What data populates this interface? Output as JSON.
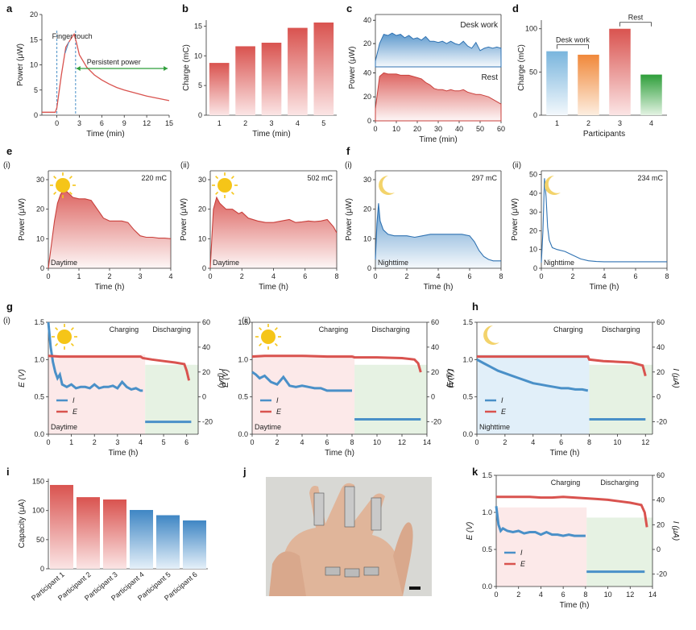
{
  "panel_labels": {
    "a": "a",
    "b": "b",
    "c": "c",
    "d": "d",
    "e": "e",
    "f": "f",
    "g": "g",
    "h": "h",
    "i": "i",
    "j": "j",
    "k": "k"
  },
  "sub_labels": {
    "e1": "(i)",
    "e2": "(ii)",
    "f1": "(i)",
    "f2": "(ii)",
    "g1": "(i)",
    "g2": "(ii)"
  },
  "colors": {
    "red": "#d9534f",
    "red_light": "#f7d6d6",
    "blue": "#4a90c8",
    "blue_light": "#cfe3f2",
    "green": "#2e9e3a",
    "orange": "#f0883a",
    "green_shade": "#e3f1e0",
    "pink_shade": "#fbe3e3",
    "sun": "#f5c518",
    "moon": "#f3d36b"
  },
  "chart_data": [
    {
      "id": "a",
      "type": "line",
      "xlabel": "Time (min)",
      "ylabel": "Power (μW)",
      "xlim": [
        -2,
        15
      ],
      "ylim": [
        0,
        20
      ],
      "xticks": [
        "0",
        "3",
        "6",
        "9",
        "12",
        "15"
      ],
      "yticks": [
        "0",
        "5",
        "10",
        "15",
        "20"
      ],
      "annotations": [
        "Finger touch",
        "Persistent power"
      ],
      "x": [
        -2,
        -0.2,
        0,
        0.6,
        1.2,
        1.8,
        2.3,
        2.6,
        3,
        4,
        5,
        6,
        7,
        8,
        9,
        10,
        11,
        12,
        13,
        14,
        15
      ],
      "y": [
        0.6,
        0.6,
        1.5,
        8,
        13.5,
        15,
        16.1,
        14.5,
        12,
        9.5,
        8,
        7,
        6.2,
        5.5,
        5,
        4.6,
        4.2,
        3.8,
        3.5,
        3.2,
        2.9
      ]
    },
    {
      "id": "b",
      "type": "bar",
      "xlabel": "Time (min)",
      "ylabel": "Charge (mC)",
      "ylim": [
        0,
        16
      ],
      "categories": [
        "1",
        "2",
        "3",
        "4",
        "5"
      ],
      "values": [
        8.8,
        11.6,
        12.2,
        14.7,
        15.6
      ],
      "yticks": [
        "0",
        "5",
        "10",
        "15"
      ]
    },
    {
      "id": "c",
      "type": "area",
      "xlabel": "Time (min)",
      "ylabel": "Power (μW)",
      "xlim": [
        0,
        60
      ],
      "xticks": [
        "0",
        "10",
        "20",
        "30",
        "40",
        "50",
        "60"
      ],
      "yticks_top": [
        "20",
        "40"
      ],
      "yticks_bottom": [
        "0",
        "20",
        "40"
      ],
      "series": [
        {
          "name": "Desk work",
          "x": [
            0,
            2,
            4,
            6,
            8,
            10,
            12,
            14,
            16,
            18,
            20,
            22,
            24,
            26,
            28,
            30,
            32,
            34,
            36,
            38,
            40,
            42,
            44,
            46,
            48,
            50,
            52,
            54,
            56,
            58,
            60
          ],
          "y": [
            5,
            20,
            28,
            27,
            29,
            27,
            28,
            25,
            27,
            24,
            25,
            23,
            26,
            22,
            22,
            21,
            22,
            20,
            22,
            20,
            19,
            22,
            18,
            16,
            21,
            14,
            16,
            17,
            16,
            17,
            16
          ]
        },
        {
          "name": "Rest",
          "x": [
            0,
            2,
            4,
            6,
            8,
            10,
            12,
            14,
            16,
            18,
            20,
            22,
            24,
            26,
            28,
            30,
            32,
            34,
            36,
            38,
            40,
            42,
            44,
            46,
            48,
            50,
            52,
            54,
            56,
            58,
            60
          ],
          "y": [
            10,
            37,
            40,
            39,
            39,
            39,
            38,
            38,
            38,
            37,
            36,
            35,
            32,
            30,
            27,
            26,
            26,
            25,
            26,
            25,
            25,
            26,
            24,
            23,
            22,
            22,
            21,
            20,
            18,
            16,
            14
          ]
        }
      ]
    },
    {
      "id": "d",
      "type": "bar",
      "xlabel": "Participants",
      "ylabel": "Charge (mC)",
      "ylim": [
        0,
        110
      ],
      "categories": [
        "1",
        "2",
        "3",
        "4"
      ],
      "values": [
        74,
        70,
        100,
        47
      ],
      "yticks": [
        "0",
        "50",
        "100"
      ],
      "annotations": [
        "Desk work",
        "Rest"
      ]
    },
    {
      "id": "e1",
      "type": "area",
      "xlabel": "Time (h)",
      "ylabel": "Power (μW)",
      "xlim": [
        0,
        4
      ],
      "ylim": [
        0,
        33
      ],
      "xticks": [
        "0",
        "1",
        "2",
        "3",
        "4"
      ],
      "yticks": [
        "0",
        "10",
        "20",
        "30"
      ],
      "annotations": [
        "220 mC",
        "Daytime"
      ],
      "x": [
        0,
        0.1,
        0.2,
        0.3,
        0.4,
        0.5,
        0.6,
        0.7,
        0.8,
        1.0,
        1.2,
        1.4,
        1.6,
        1.8,
        2.0,
        2.2,
        2.4,
        2.6,
        2.8,
        3.0,
        3.2,
        3.4,
        3.6,
        3.8,
        4.0
      ],
      "y": [
        0,
        8,
        16,
        22,
        25,
        26.5,
        26,
        25,
        24,
        23.5,
        23.5,
        23,
        20,
        17,
        16,
        16,
        16,
        15.5,
        13,
        11,
        10.5,
        10.5,
        10.2,
        10.2,
        10
      ]
    },
    {
      "id": "e2",
      "type": "area",
      "xlabel": "Time (h)",
      "ylabel": "Power (μW)",
      "xlim": [
        0,
        8
      ],
      "ylim": [
        0,
        33
      ],
      "xticks": [
        "0",
        "2",
        "4",
        "6",
        "8"
      ],
      "yticks": [
        "0",
        "10",
        "20",
        "30"
      ],
      "annotations": [
        "502 mC",
        "Daytime"
      ],
      "x": [
        0,
        0.2,
        0.4,
        0.6,
        0.8,
        1.0,
        1.4,
        1.8,
        2.0,
        2.4,
        3.0,
        3.5,
        4.0,
        4.5,
        5.0,
        5.4,
        5.8,
        6.2,
        6.6,
        7.0,
        7.4,
        7.8,
        8.0
      ],
      "y": [
        0,
        20,
        24,
        22,
        21,
        20,
        20,
        18.5,
        19,
        17,
        16,
        15.5,
        15.5,
        16,
        16.5,
        15.5,
        15.7,
        16,
        15.8,
        16,
        16.5,
        14,
        12
      ]
    },
    {
      "id": "f1",
      "type": "area",
      "xlabel": "Time (h)",
      "ylabel": "Power (μW)",
      "xlim": [
        0,
        8
      ],
      "ylim": [
        0,
        33
      ],
      "xticks": [
        "0",
        "2",
        "4",
        "6",
        "8"
      ],
      "yticks": [
        "0",
        "10",
        "20",
        "30"
      ],
      "annotations": [
        "297 mC",
        "Nighttime"
      ],
      "x": [
        0,
        0.1,
        0.2,
        0.3,
        0.5,
        0.8,
        1.2,
        1.6,
        2.0,
        2.5,
        3.0,
        3.5,
        4.0,
        4.5,
        5.0,
        5.5,
        6.0,
        6.3,
        6.6,
        6.9,
        7.2,
        7.5,
        8.0
      ],
      "y": [
        3,
        15,
        22,
        16,
        13,
        11.5,
        11,
        11,
        11,
        10.5,
        11,
        11.5,
        11.5,
        11.5,
        11.5,
        11.5,
        11,
        9,
        6,
        4,
        3,
        2.5,
        2.5
      ]
    },
    {
      "id": "f2",
      "type": "line",
      "xlabel": "Time (h)",
      "ylabel": "Power (μW)",
      "xlim": [
        0,
        8
      ],
      "ylim": [
        0,
        52
      ],
      "xticks": [
        "0",
        "2",
        "4",
        "6",
        "8"
      ],
      "yticks": [
        "0",
        "10",
        "20",
        "30",
        "40",
        "50"
      ],
      "annotations": [
        "234 mC",
        "Nighttime"
      ],
      "x": [
        0,
        0.1,
        0.2,
        0.3,
        0.4,
        0.5,
        0.7,
        1.0,
        1.5,
        2.0,
        2.5,
        3.0,
        3.5,
        4.0,
        5.0,
        6.0,
        7.0,
        8.0
      ],
      "y": [
        3,
        20,
        48,
        38,
        22,
        15,
        11,
        10,
        9,
        7,
        5,
        4,
        3.6,
        3.5,
        3.5,
        3.5,
        3.5,
        3.5
      ]
    },
    {
      "id": "g1",
      "type": "line",
      "xlabel": "Time (h)",
      "ylabel": "E (V)",
      "ylabel_right": "I (μA)",
      "xlim": [
        0,
        6.5
      ],
      "xticks": [
        "0",
        "1",
        "2",
        "3",
        "4",
        "5",
        "6"
      ],
      "yticks": [
        "0.0",
        "0.5",
        "1.0",
        "1.5"
      ],
      "yticks_right": [
        "-20",
        "0",
        "20",
        "40",
        "60"
      ],
      "annotations": [
        "Charging",
        "Discharging",
        "Daytime"
      ],
      "legend": [
        "I",
        "E"
      ],
      "series": [
        {
          "name": "I",
          "x": [
            0,
            0.1,
            0.2,
            0.3,
            0.4,
            0.5,
            0.6,
            0.8,
            1.0,
            1.2,
            1.4,
            1.6,
            1.8,
            2.0,
            2.2,
            2.4,
            2.6,
            2.8,
            3.0,
            3.2,
            3.4,
            3.6,
            3.8,
            4.0,
            4.1,
            4.2,
            5,
            6,
            6.2
          ],
          "y": [
            60,
            40,
            28,
            20,
            15,
            18,
            10,
            8,
            10,
            7,
            8,
            8,
            7,
            10,
            7,
            8,
            8,
            9,
            7,
            12,
            8,
            6,
            7,
            5,
            5,
            -20,
            -20,
            -20,
            -20
          ]
        },
        {
          "name": "E",
          "x": [
            0,
            0.5,
            1,
            2,
            3,
            4,
            4.1,
            4.5,
            5,
            5.5,
            5.9,
            6.0,
            6.1
          ],
          "y": [
            1.05,
            1.04,
            1.04,
            1.04,
            1.04,
            1.04,
            1.02,
            1.0,
            0.98,
            0.96,
            0.94,
            0.85,
            0.72
          ]
        }
      ]
    },
    {
      "id": "g2",
      "type": "line",
      "xlabel": "Time (h)",
      "ylabel": "E (V)",
      "ylabel_right": "I (μA)",
      "xlim": [
        0,
        14
      ],
      "xticks": [
        "0",
        "2",
        "4",
        "6",
        "8",
        "10",
        "12",
        "14"
      ],
      "yticks": [
        "0.0",
        "0.5",
        "1.0",
        "1.5"
      ],
      "yticks_right": [
        "-20",
        "0",
        "20",
        "40",
        "60"
      ],
      "annotations": [
        "Charging",
        "Discharging",
        "Daytime"
      ],
      "legend": [
        "I",
        "E"
      ],
      "series": [
        {
          "name": "I",
          "x": [
            0,
            0.3,
            0.6,
            1.0,
            1.5,
            2.0,
            2.5,
            3.0,
            3.5,
            4.0,
            4.5,
            5.0,
            5.5,
            6.0,
            6.5,
            7.0,
            7.5,
            8.0,
            8.2,
            10,
            12,
            13.5
          ],
          "y": [
            20,
            18,
            15,
            17,
            12,
            10,
            16,
            9,
            8,
            9,
            8,
            7,
            7,
            5,
            5,
            5,
            5,
            5,
            -18,
            -18,
            -18,
            -18
          ]
        },
        {
          "name": "E",
          "x": [
            0,
            1,
            2,
            4,
            6,
            8,
            8.2,
            10,
            12,
            13,
            13.3,
            13.5
          ],
          "y": [
            1.04,
            1.05,
            1.05,
            1.05,
            1.04,
            1.04,
            1.03,
            1.03,
            1.02,
            1.0,
            0.95,
            0.83
          ]
        }
      ]
    },
    {
      "id": "h",
      "type": "line",
      "xlabel": "Time (h)",
      "ylabel": "E (V)",
      "ylabel_right": "I (μA)",
      "xlim": [
        0,
        12.5
      ],
      "xticks": [
        "0",
        "2",
        "4",
        "6",
        "8",
        "10",
        "12"
      ],
      "yticks": [
        "0.0",
        "0.5",
        "1.0",
        "1.5"
      ],
      "yticks_right": [
        "-20",
        "0",
        "20",
        "40",
        "60"
      ],
      "annotations": [
        "Charging",
        "Discharging",
        "Nighttime"
      ],
      "legend": [
        "I",
        "E"
      ],
      "series": [
        {
          "name": "I",
          "x": [
            0,
            0.5,
            1,
            1.5,
            2,
            2.5,
            3,
            3.5,
            4,
            4.5,
            5,
            5.5,
            6,
            6.5,
            7,
            7.5,
            7.9,
            8.0,
            9,
            10,
            11,
            12
          ],
          "y": [
            30,
            27,
            24,
            21,
            19,
            17,
            15,
            13,
            11,
            10,
            9,
            8,
            7,
            7,
            6,
            6,
            5,
            -18,
            -18,
            -18,
            -18,
            -18
          ]
        },
        {
          "name": "E",
          "x": [
            0,
            2,
            4,
            6,
            7.9,
            8.0,
            9,
            10,
            11,
            11.8,
            12.0
          ],
          "y": [
            1.04,
            1.04,
            1.04,
            1.04,
            1.04,
            1.0,
            0.98,
            0.97,
            0.96,
            0.92,
            0.78
          ]
        }
      ]
    },
    {
      "id": "i",
      "type": "bar",
      "ylabel": "Capacity (μA)",
      "ylim": [
        0,
        155
      ],
      "categories": [
        "Participant 1",
        "Participant 2",
        "Participant 3",
        "Participant 4",
        "Participant 5",
        "Participant 6"
      ],
      "values": [
        144,
        123,
        119,
        101,
        92,
        83
      ],
      "yticks": [
        "0",
        "50",
        "100",
        "150"
      ]
    },
    {
      "id": "k",
      "type": "line",
      "xlabel": "Time (h)",
      "ylabel": "E (V)",
      "ylabel_right": "I (μA)",
      "xlim": [
        0,
        14
      ],
      "xticks": [
        "0",
        "2",
        "4",
        "6",
        "8",
        "10",
        "12",
        "14"
      ],
      "yticks": [
        "0.0",
        "0.5",
        "1.0",
        "1.5"
      ],
      "yticks_right": [
        "-20",
        "0",
        "20",
        "40",
        "60"
      ],
      "annotations": [
        "Charging",
        "Discharging"
      ],
      "legend": [
        "I",
        "E"
      ],
      "series": [
        {
          "name": "I",
          "x": [
            0,
            0.2,
            0.4,
            0.6,
            1,
            1.5,
            2,
            2.5,
            3,
            3.5,
            4,
            4.5,
            5,
            5.5,
            6,
            6.5,
            7,
            7.5,
            8.0,
            8.1,
            10,
            12,
            13.3
          ],
          "y": [
            35,
            20,
            15,
            17,
            15,
            14,
            15,
            13,
            14,
            14,
            12,
            14,
            12,
            12,
            11,
            12,
            11,
            11,
            11,
            -18,
            -18,
            -18,
            -18
          ]
        },
        {
          "name": "E",
          "x": [
            0,
            1,
            2,
            3,
            4,
            5,
            6,
            7,
            8,
            9,
            10,
            11,
            12,
            13,
            13.3,
            13.5
          ],
          "y": [
            1.21,
            1.21,
            1.21,
            1.21,
            1.2,
            1.2,
            1.21,
            1.2,
            1.19,
            1.18,
            1.17,
            1.15,
            1.13,
            1.1,
            1.0,
            0.8
          ]
        }
      ]
    }
  ]
}
